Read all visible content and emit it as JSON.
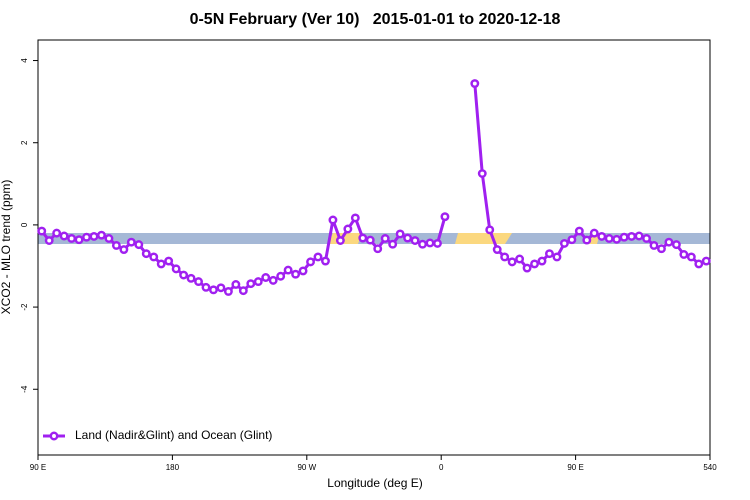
{
  "chart_data": {
    "type": "line",
    "title": "0-5N February (Ver 10)   2015-01-01 to 2020-12-18",
    "x_label": "Longitude (deg E)",
    "y_label": "XCO2 - MLO trend (ppm)",
    "xlim": [
      90,
      540
    ],
    "ylim": [
      -5.6,
      4.5
    ],
    "xticks": [
      {
        "value": 90,
        "label": "90 E"
      },
      180,
      {
        "value": 270,
        "label": "90 W"
      },
      {
        "value": 360,
        "label": "0"
      },
      {
        "value": 450,
        "label": "90 E"
      },
      540
    ],
    "yticks": [
      4,
      2,
      0,
      -2,
      -4
    ],
    "legend": "bottom-left",
    "x": [
      92.5,
      97.5,
      102.5,
      107.5,
      112.5,
      117.5,
      122.5,
      127.5,
      132.5,
      137.5,
      142.5,
      147.5,
      152.5,
      157.5,
      162.5,
      167.5,
      172.5,
      177.5,
      182.5,
      187.5,
      192.5,
      197.5,
      202.5,
      207.5,
      212.5,
      217.5,
      222.5,
      227.5,
      232.5,
      237.5,
      242.5,
      247.5,
      252.5,
      257.5,
      262.5,
      267.5,
      272.5,
      277.5,
      282.5,
      287.5,
      292.5,
      297.5,
      302.5,
      307.5,
      312.5,
      317.5,
      322.5,
      327.5,
      332.5,
      337.5,
      342.5,
      347.5,
      352.5,
      357.5,
      362.5,
      367.5,
      372.5,
      377.5,
      382.5,
      387.5,
      392.5,
      397.5,
      402.5,
      407.5,
      412.5,
      417.5,
      422.5,
      427.5,
      432.5,
      437.5,
      442.5,
      447.5,
      452.5,
      457.5,
      462.5,
      467.5,
      472.5,
      477.5,
      482.5,
      487.5,
      492.5,
      497.5,
      502.5,
      507.5,
      512.5,
      517.5,
      522.5,
      527.5,
      532.5,
      537.5
    ],
    "series": [
      {
        "name": "Land (Nadir&Glint) and Ocean (Glint)",
        "color": "#a020f0",
        "values": [
          -0.15,
          -0.38,
          -0.2,
          -0.27,
          -0.33,
          -0.36,
          -0.3,
          -0.28,
          -0.25,
          -0.33,
          -0.5,
          -0.6,
          -0.42,
          -0.48,
          -0.7,
          -0.78,
          -0.95,
          -0.88,
          -1.07,
          -1.22,
          -1.3,
          -1.38,
          -1.52,
          -1.58,
          -1.53,
          -1.62,
          -1.45,
          -1.6,
          -1.43,
          -1.38,
          -1.28,
          -1.35,
          -1.25,
          -1.1,
          -1.2,
          -1.12,
          -0.9,
          -0.78,
          -0.88,
          0.12,
          -0.38,
          -0.1,
          0.17,
          -0.32,
          -0.37,
          -0.58,
          -0.33,
          -0.47,
          -0.22,
          -0.32,
          -0.38,
          -0.47,
          -0.44,
          -0.45,
          0.2,
          null,
          null,
          null,
          3.44,
          1.25,
          -0.12,
          -0.6,
          -0.78,
          -0.9,
          -0.83,
          -1.05,
          -0.95,
          -0.88,
          -0.7,
          -0.78,
          -0.45,
          -0.36,
          -0.15,
          -0.37,
          -0.2,
          -0.28,
          -0.33,
          -0.35,
          -0.3,
          -0.28,
          -0.27,
          -0.33,
          -0.5,
          -0.58,
          -0.42,
          -0.48,
          -0.72,
          -0.78,
          -0.95,
          -0.88
        ]
      }
    ]
  }
}
